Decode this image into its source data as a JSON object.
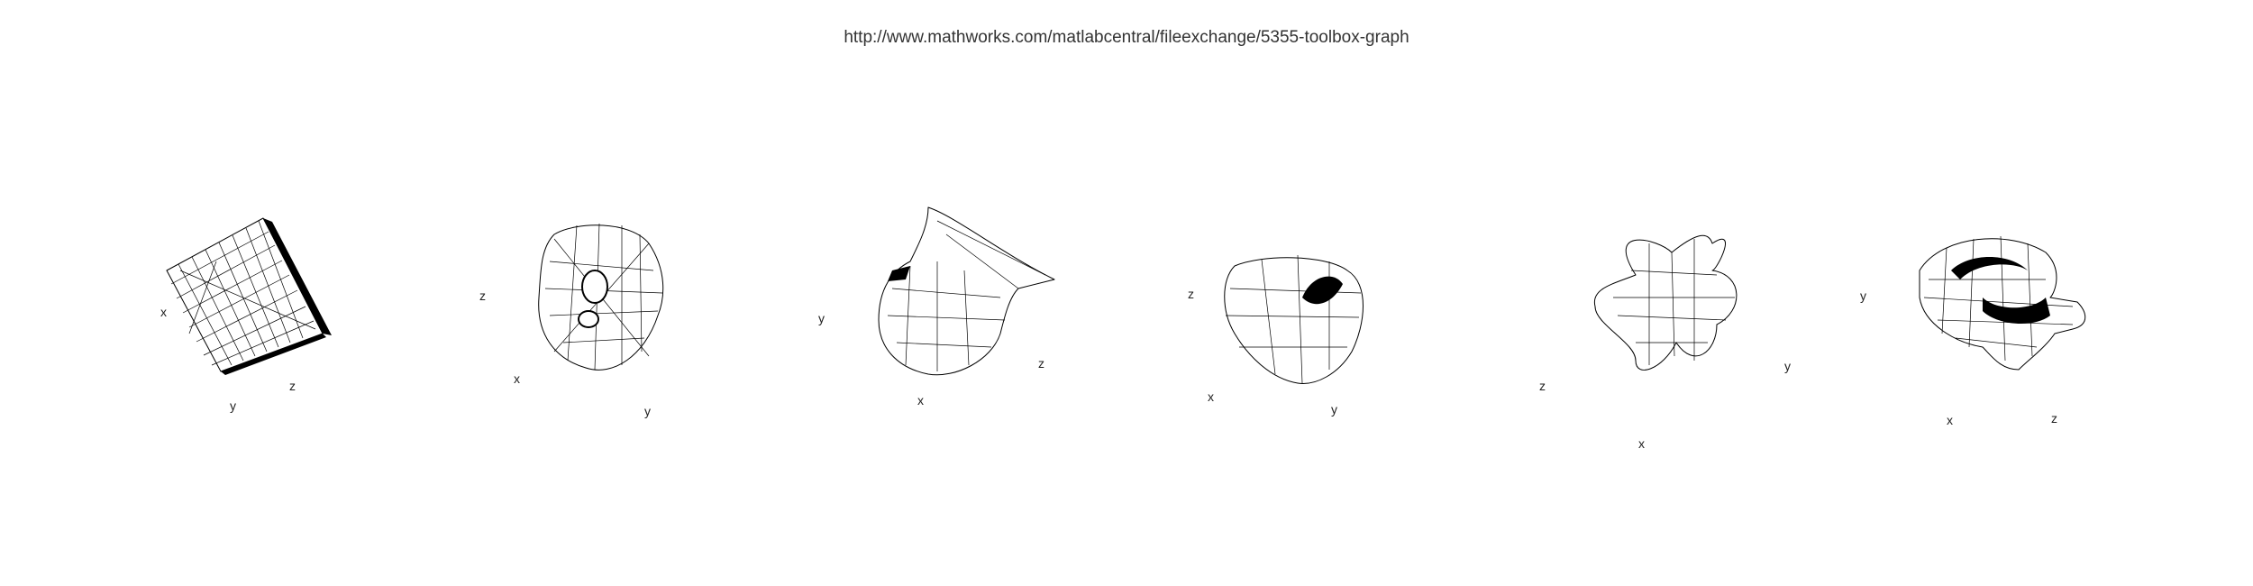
{
  "header": {
    "url": "http://www.mathworks.com/matlabcentral/fileexchange/5355-toolbox-graph"
  },
  "panels": [
    {
      "id": "cube",
      "labels": {
        "x": "x",
        "y": "y",
        "z": "z"
      }
    },
    {
      "id": "torus-like",
      "labels": {
        "x": "x",
        "y": "y",
        "z": "z"
      }
    },
    {
      "id": "bunny-like",
      "labels": {
        "x": "x",
        "y": "y",
        "z": "z"
      }
    },
    {
      "id": "blob",
      "labels": {
        "x": "x",
        "y": "y",
        "z": "z"
      }
    },
    {
      "id": "star",
      "labels": {
        "x": "x",
        "y": "y",
        "z": "z"
      }
    },
    {
      "id": "knot",
      "labels": {
        "x": "x",
        "y": "y",
        "z": "z"
      }
    }
  ]
}
